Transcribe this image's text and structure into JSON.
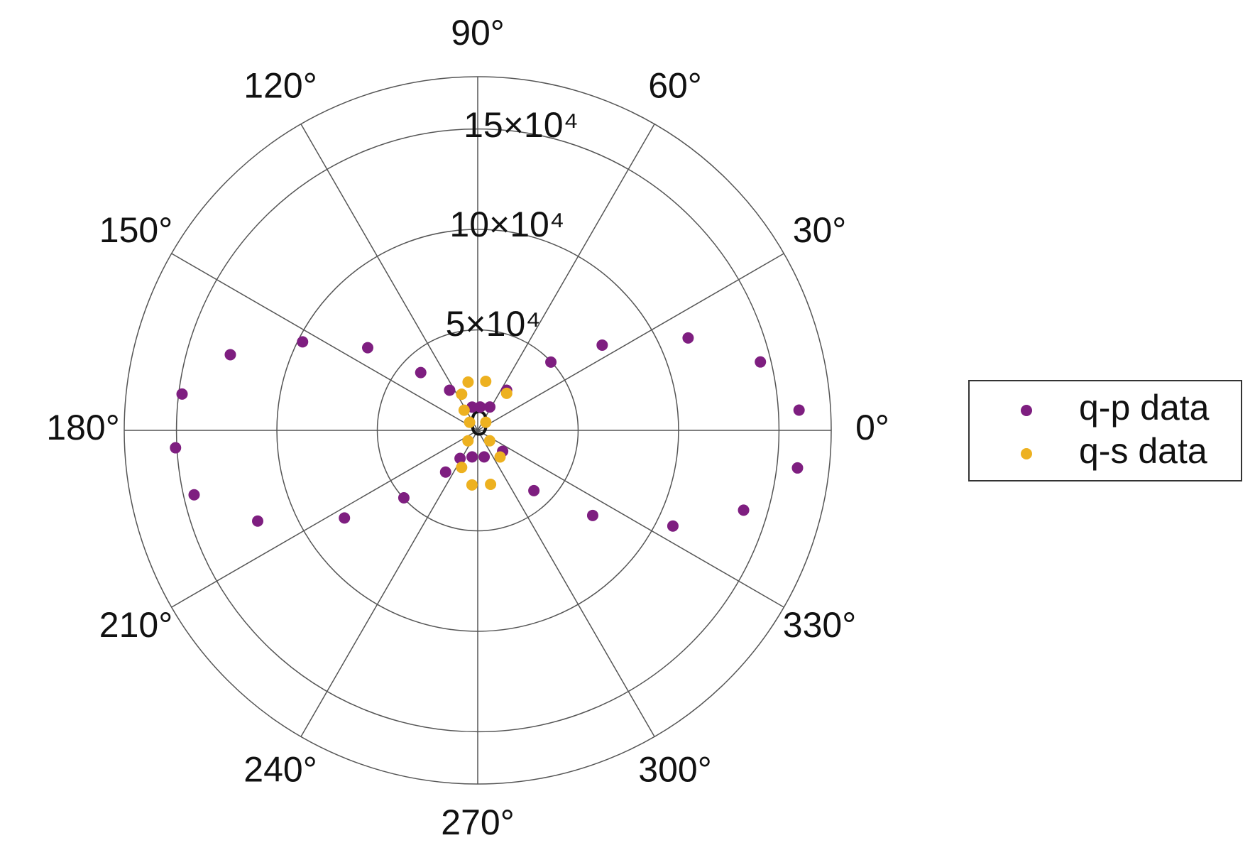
{
  "chart_data": {
    "type": "polar-scatter",
    "rlim": [
      0,
      176000
    ],
    "rticks": [
      0,
      {
        "value": 50000,
        "label": "5×10⁴"
      },
      {
        "value": 100000,
        "label": "10×10⁴"
      },
      {
        "value": 150000,
        "label": "15×10⁴"
      }
    ],
    "thetaticks": [
      {
        "value": 0,
        "label": "0°"
      },
      {
        "value": 30,
        "label": "30°"
      },
      {
        "value": 60,
        "label": "60°"
      },
      {
        "value": 90,
        "label": "90°"
      },
      {
        "value": 120,
        "label": "120°"
      },
      {
        "value": 150,
        "label": "150°"
      },
      {
        "value": 180,
        "label": "180°"
      },
      {
        "value": 210,
        "label": "210°"
      },
      {
        "value": 240,
        "label": "240°"
      },
      {
        "value": 270,
        "label": "270°"
      },
      {
        "value": 300,
        "label": "300°"
      },
      {
        "value": 330,
        "label": "330°"
      }
    ],
    "grid": true,
    "legend": "right",
    "series": [
      {
        "name": "q-p data",
        "color": "#7e1e80",
        "theta": [
          3.6,
          353.3,
          13.6,
          343.3,
          23.7,
          333.9,
          34.4,
          323.5,
          43.0,
          313.0,
          54.2,
          320.0,
          173.0,
          183.3,
          163.0,
          192.8,
          153.2,
          202.4,
          143.1,
          213.3,
          134.6,
          222.4,
          125.0,
          232.4,
          103.6,
          84.0,
          62.6,
          237.8,
          258.0,
          283.6
        ],
        "r": [
          160300,
          160300,
          144800,
          138200,
          114400,
          108200,
          75100,
          71200,
          49800,
          41000,
          24600,
          16200,
          148300,
          150700,
          128800,
          144800,
          97700,
          118500,
          68500,
          79400,
          40400,
          49800,
          24400,
          26200,
          11900,
          11700,
          13100,
          16500,
          13500,
          13600
        ]
      },
      {
        "name": "q-s data",
        "color": "#edb120",
        "theta": [
          101.3,
          80.7,
          114.0,
          52.0,
          124.0,
          45.0,
          135.0,
          227.0,
          319.0,
          310.0,
          246.5,
          264.0,
          283.4
        ],
        "r": [
          24500,
          24700,
          19700,
          23400,
          12100,
          5700,
          5700,
          7100,
          7900,
          17300,
          20100,
          27300,
          27600
        ]
      }
    ]
  }
}
